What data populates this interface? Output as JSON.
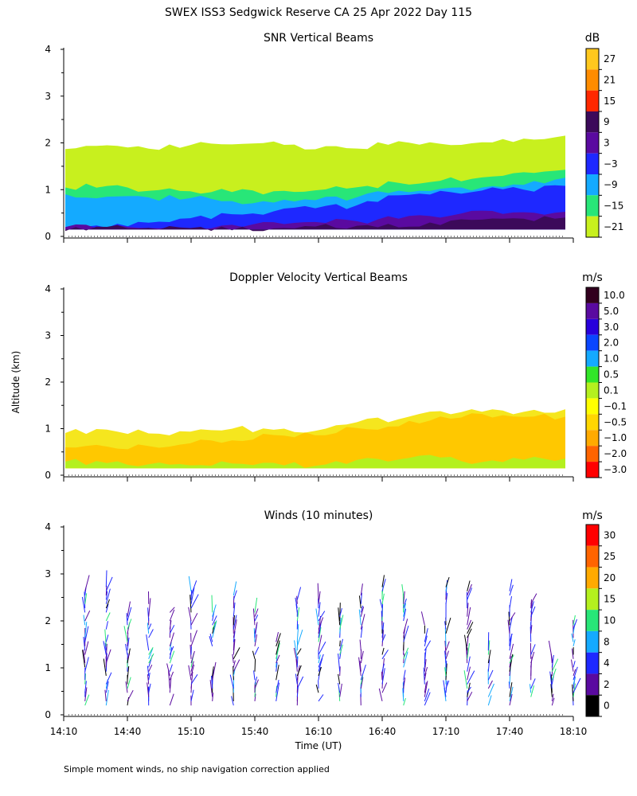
{
  "figure": {
    "title": "SWEX ISS3 Sedgwick Reserve CA  25 Apr 2022 Day 115",
    "ylabel": "Altitude (km)",
    "xlabel": "Time (UT)",
    "footnote": "Simple moment winds, no ship navigation correction applied",
    "time_ticks": [
      "14:10",
      "14:40",
      "15:10",
      "15:40",
      "16:10",
      "16:40",
      "17:10",
      "17:40",
      "18:10"
    ]
  },
  "chart_data": [
    {
      "type": "heatmap",
      "title": "SNR Vertical Beams",
      "unit": "dB",
      "xlim": [
        "14:10",
        "18:10"
      ],
      "ylim": [
        0,
        4
      ],
      "y_ticks": [
        0,
        1,
        2,
        3,
        4
      ],
      "colorbar": {
        "labels": [
          "27",
          "21",
          "15",
          "9",
          "3",
          "−3",
          "−9",
          "−15",
          "−21"
        ],
        "colors": [
          "#ffc81e",
          "#ff8c00",
          "#ff2800",
          "#3c0a5a",
          "#5a0aa0",
          "#1e28ff",
          "#14aaff",
          "#28e678",
          "#c8f01e"
        ]
      },
      "layers": [
        {
          "level": "-21",
          "color": "#c8f01e",
          "top_km": [
            1.85,
            1.9,
            1.9,
            2.0,
            2.0,
            2.0,
            1.9,
            1.9,
            2.0,
            2.0,
            2.0,
            2.05,
            2.1
          ]
        },
        {
          "level": "-15",
          "color": "#28e678",
          "top_km": [
            1.05,
            1.05,
            1.0,
            1.0,
            0.95,
            1.0,
            1.0,
            1.05,
            1.1,
            1.2,
            1.3,
            1.35,
            1.4
          ]
        },
        {
          "level": "-9",
          "color": "#14aaff",
          "top_km": [
            0.85,
            0.9,
            0.85,
            0.8,
            0.75,
            0.75,
            0.8,
            0.85,
            0.95,
            1.05,
            1.1,
            1.15,
            1.2
          ]
        },
        {
          "level": "-3",
          "color": "#1e28ff",
          "top_km": [
            0.2,
            0.2,
            0.25,
            0.35,
            0.45,
            0.5,
            0.6,
            0.7,
            0.85,
            0.95,
            1.0,
            1.05,
            1.05
          ]
        },
        {
          "level": "3",
          "color": "#5a0aa0",
          "top_km": [
            0.15,
            0.15,
            0.15,
            0.18,
            0.22,
            0.25,
            0.3,
            0.35,
            0.4,
            0.45,
            0.5,
            0.55,
            0.55
          ]
        },
        {
          "level": "9",
          "color": "#3c0a5a",
          "top_km": [
            0.15,
            0.15,
            0.15,
            0.15,
            0.15,
            0.18,
            0.2,
            0.22,
            0.25,
            0.28,
            0.3,
            0.32,
            0.35
          ]
        }
      ]
    },
    {
      "type": "heatmap",
      "title": "Doppler Velocity Vertical Beams",
      "unit": "m/s",
      "xlim": [
        "14:10",
        "18:10"
      ],
      "ylim": [
        0,
        4
      ],
      "y_ticks": [
        0,
        1,
        2,
        3,
        4
      ],
      "colorbar": {
        "labels": [
          "10.0",
          "5.0",
          "3.0",
          "2.0",
          "1.0",
          "0.5",
          "0.1",
          "−0.1",
          "−0.5",
          "−1.0",
          "−2.0",
          "−3.0"
        ],
        "colors": [
          "#32001e",
          "#5a0aa0",
          "#2800dc",
          "#0a46ff",
          "#14aaff",
          "#32e628",
          "#b4f01e",
          "#ffff00",
          "#ffd700",
          "#ffaa00",
          "#ff6400",
          "#ff0000"
        ]
      },
      "layers": [
        {
          "level": "-0.1",
          "color": "#f5e61e",
          "top_km": [
            0.95,
            0.95,
            0.9,
            0.95,
            1.0,
            1.0,
            1.0,
            1.1,
            1.2,
            1.35,
            1.4,
            1.35,
            1.4
          ]
        },
        {
          "level": "-0.5",
          "color": "#ffc800",
          "top_km": [
            0.55,
            0.6,
            0.6,
            0.7,
            0.8,
            0.85,
            0.9,
            1.0,
            1.1,
            1.25,
            1.3,
            1.25,
            1.3
          ]
        },
        {
          "level": "0.1",
          "color": "#b4f01e",
          "top_km": [
            0.25,
            0.2,
            0.2,
            0.2,
            0.22,
            0.25,
            0.25,
            0.3,
            0.3,
            0.35,
            0.3,
            0.3,
            0.3
          ]
        }
      ]
    },
    {
      "type": "wind_barbs",
      "title": "Winds (10 minutes)",
      "unit": "m/s",
      "xlim": [
        "14:10",
        "18:10"
      ],
      "ylim": [
        0,
        4
      ],
      "y_ticks": [
        0,
        1,
        2,
        3,
        4
      ],
      "colorbar": {
        "labels": [
          "30",
          "25",
          "20",
          "15",
          "10",
          "8",
          "4",
          "2",
          "0"
        ],
        "colors": [
          "#ff0000",
          "#ff6400",
          "#ffaa00",
          "#b4f01e",
          "#28e678",
          "#14aaff",
          "#1e28ff",
          "#5a0aa0",
          "#000000"
        ]
      },
      "profile_times": [
        "14:20",
        "14:30",
        "14:40",
        "14:50",
        "15:00",
        "15:10",
        "15:20",
        "15:30",
        "15:40",
        "15:50",
        "16:00",
        "16:10",
        "16:20",
        "16:30",
        "16:40",
        "16:50",
        "17:00",
        "17:10",
        "17:20",
        "17:30",
        "17:40",
        "17:50",
        "18:00",
        "18:10"
      ]
    }
  ]
}
